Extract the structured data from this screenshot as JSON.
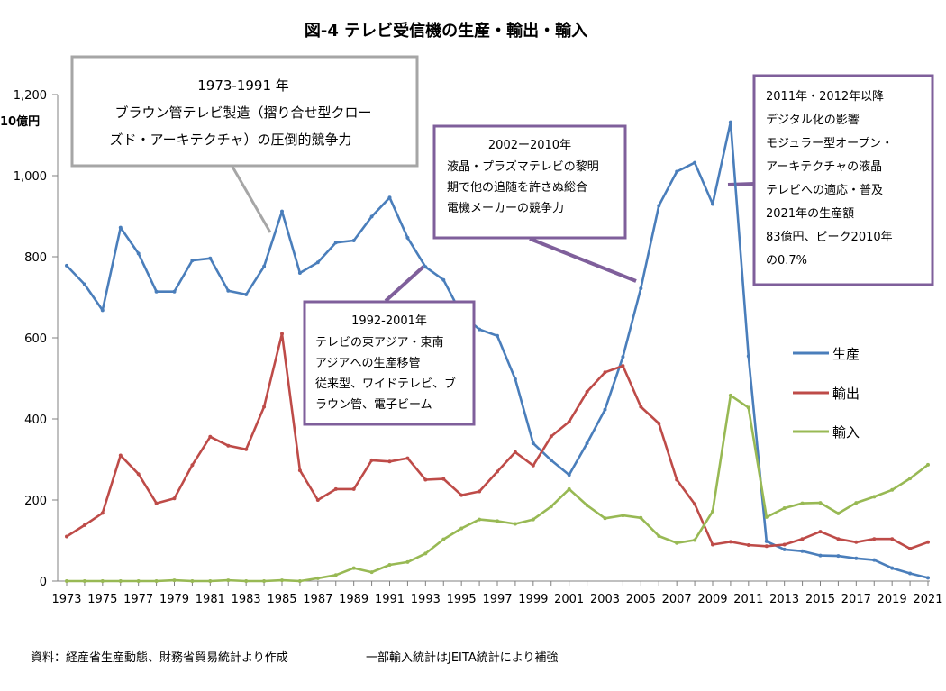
{
  "chart_data": {
    "type": "line",
    "title": "図-4  テレビ受信機の生産・輸出・輸入",
    "ylabel": "10億円",
    "xlabel": "",
    "ylim": [
      0,
      1200
    ],
    "yticks": [
      "0",
      "200",
      "400",
      "600",
      "800",
      "1,000",
      "1,200"
    ],
    "ytick_values": [
      0,
      200,
      400,
      600,
      800,
      1000,
      1200
    ],
    "x": [
      1973,
      1974,
      1975,
      1976,
      1977,
      1978,
      1979,
      1980,
      1981,
      1982,
      1983,
      1984,
      1985,
      1986,
      1987,
      1988,
      1989,
      1990,
      1991,
      1992,
      1993,
      1994,
      1995,
      1996,
      1997,
      1998,
      1999,
      2000,
      2001,
      2002,
      2003,
      2004,
      2005,
      2006,
      2007,
      2008,
      2009,
      2010,
      2011,
      2012,
      2013,
      2014,
      2015,
      2016,
      2017,
      2018,
      2019,
      2020,
      2021
    ],
    "xticks": [
      "1973",
      "1975",
      "1977",
      "1979",
      "1981",
      "1983",
      "1985",
      "1987",
      "1989",
      "1991",
      "1993",
      "1995",
      "1997",
      "1999",
      "2001",
      "2003",
      "2005",
      "2007",
      "2009",
      "2011",
      "2013",
      "2015",
      "2017",
      "2019",
      "2021"
    ],
    "legend_position": "right",
    "series": [
      {
        "name": "生産",
        "color": "#4a7ebb",
        "values": [
          778,
          732,
          668,
          872,
          808,
          714,
          714,
          791,
          796,
          716,
          707,
          776,
          912,
          760,
          786,
          835,
          840,
          899,
          946,
          847,
          775,
          743,
          658,
          621,
          605,
          498,
          340,
          298,
          262,
          340,
          423,
          553,
          722,
          926,
          1010,
          1032,
          930,
          1132,
          555,
          98,
          78,
          74,
          63,
          62,
          56,
          52,
          32,
          19,
          8
        ]
      },
      {
        "name": "輸出",
        "color": "#be4b48",
        "values": [
          110,
          138,
          168,
          310,
          264,
          192,
          204,
          286,
          356,
          334,
          325,
          430,
          610,
          273,
          200,
          227,
          227,
          298,
          295,
          303,
          250,
          252,
          212,
          221,
          270,
          318,
          285,
          357,
          393,
          467,
          515,
          531,
          430,
          389,
          250,
          190,
          90,
          97,
          89,
          86,
          90,
          104,
          122,
          104,
          96,
          104,
          104,
          80,
          96
        ]
      },
      {
        "name": "輸入",
        "color": "#98b954",
        "values": [
          0,
          0,
          0,
          0,
          0,
          0,
          2,
          0,
          0,
          2,
          0,
          0,
          2,
          0,
          7,
          15,
          32,
          22,
          40,
          47,
          68,
          103,
          130,
          152,
          148,
          141,
          152,
          184,
          227,
          187,
          155,
          162,
          156,
          111,
          94,
          101,
          172,
          458,
          428,
          158,
          180,
          192,
          193,
          167,
          193,
          208,
          225,
          253,
          287
        ]
      }
    ],
    "annotations": [
      {
        "id": "a1",
        "lines": [
          "1973-1991 年",
          "ブラウン管テレビ製造（摺り合せ型クロー",
          "ズド・アーキテクチャ）の圧倒的競争力"
        ]
      },
      {
        "id": "a2",
        "lines": [
          "2002ー2010年",
          "液晶・プラズマテレビの黎明",
          "期で他の追随を許さぬ総合",
          "電機メーカーの競争力"
        ]
      },
      {
        "id": "a3",
        "lines": [
          "1992-2001年",
          "テレビの東アジア・東南",
          "アジアへの生産移管",
          "従来型、ワイドテレビ、ブ",
          "ラウン管、電子ビーム"
        ]
      },
      {
        "id": "a4",
        "lines": [
          "2011年・2012年以降",
          "デジタル化の影響",
          "モジュラー型オープン・",
          "アーキテクチャの液晶",
          "テレビへの適応・普及",
          "2021年の生産額",
          "83億円、ピーク2010年",
          "の0.7%"
        ]
      }
    ]
  },
  "footer": {
    "source": "資料：経産省生産動態、財務省貿易統計より作成",
    "note": "一部輸入統計はJEITA統計により補強"
  }
}
